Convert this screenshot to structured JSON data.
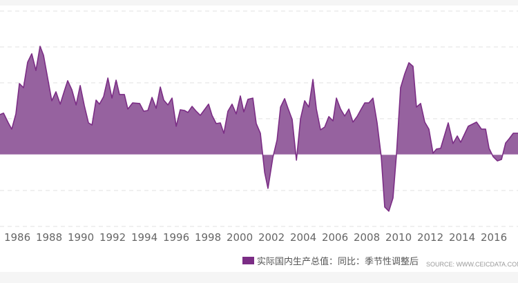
{
  "chart_data": {
    "type": "area",
    "title": "",
    "xlabel": "",
    "ylabel": "",
    "xlim": [
      1984.91,
      2017.52
    ],
    "ylim": [
      -4,
      8
    ],
    "grid": true,
    "y_gridlines": [
      -4,
      -2,
      0,
      2,
      4,
      6,
      8
    ],
    "x_ticks": [
      "1986",
      "1988",
      "1990",
      "1992",
      "1994",
      "1996",
      "1998",
      "2000",
      "2002",
      "2004",
      "2006",
      "2008",
      "2010",
      "2012",
      "2014",
      "2016"
    ],
    "legend": {
      "placement": "bottom",
      "entries": [
        "实际国内生产总值：同比：季节性调整后"
      ]
    },
    "source": "SOURCE: WWW.CEICDATA.COM",
    "colors": {
      "fill": "#96629f",
      "line": "#7b2d85"
    },
    "series": [
      {
        "name": "实际国内生产总值：同比：季节性调整后",
        "points": [
          [
            1984.91,
            2.23
          ],
          [
            1985.13,
            2.31
          ],
          [
            1985.43,
            1.77
          ],
          [
            1985.65,
            1.42
          ],
          [
            1985.91,
            2.27
          ],
          [
            1986.13,
            3.96
          ],
          [
            1986.39,
            3.73
          ],
          [
            1986.65,
            5.15
          ],
          [
            1986.91,
            5.62
          ],
          [
            1987.17,
            4.69
          ],
          [
            1987.43,
            6.04
          ],
          [
            1987.65,
            5.54
          ],
          [
            1988.17,
            3.0
          ],
          [
            1988.43,
            3.5
          ],
          [
            1988.7,
            2.81
          ],
          [
            1988.96,
            3.54
          ],
          [
            1989.17,
            4.12
          ],
          [
            1989.43,
            3.62
          ],
          [
            1989.7,
            2.77
          ],
          [
            1989.96,
            3.85
          ],
          [
            1990.22,
            2.73
          ],
          [
            1990.48,
            1.77
          ],
          [
            1990.7,
            1.65
          ],
          [
            1990.96,
            3.04
          ],
          [
            1991.17,
            2.81
          ],
          [
            1991.43,
            3.23
          ],
          [
            1991.7,
            4.27
          ],
          [
            1991.96,
            3.15
          ],
          [
            1992.22,
            4.15
          ],
          [
            1992.43,
            3.35
          ],
          [
            1992.74,
            3.35
          ],
          [
            1992.96,
            2.54
          ],
          [
            1993.26,
            2.88
          ],
          [
            1993.7,
            2.85
          ],
          [
            1993.96,
            2.42
          ],
          [
            1994.22,
            2.46
          ],
          [
            1994.48,
            3.19
          ],
          [
            1994.74,
            2.58
          ],
          [
            1995.0,
            3.77
          ],
          [
            1995.22,
            3.04
          ],
          [
            1995.48,
            2.77
          ],
          [
            1995.74,
            3.15
          ],
          [
            1996.0,
            1.58
          ],
          [
            1996.26,
            2.5
          ],
          [
            1996.52,
            2.46
          ],
          [
            1996.74,
            2.35
          ],
          [
            1997.0,
            2.69
          ],
          [
            1997.26,
            2.42
          ],
          [
            1997.52,
            2.19
          ],
          [
            1997.78,
            2.5
          ],
          [
            1998.04,
            2.81
          ],
          [
            1998.26,
            2.19
          ],
          [
            1998.52,
            1.73
          ],
          [
            1998.78,
            1.77
          ],
          [
            1999.0,
            1.19
          ],
          [
            1999.26,
            2.42
          ],
          [
            1999.52,
            2.81
          ],
          [
            1999.78,
            2.27
          ],
          [
            2000.04,
            3.27
          ],
          [
            2000.26,
            2.38
          ],
          [
            2000.52,
            3.08
          ],
          [
            2000.83,
            3.15
          ],
          [
            2001.04,
            1.73
          ],
          [
            2001.3,
            1.19
          ],
          [
            2001.57,
            -1.0
          ],
          [
            2001.78,
            -1.88
          ],
          [
            2002.09,
            -0.15
          ],
          [
            2002.35,
            0.81
          ],
          [
            2002.57,
            2.65
          ],
          [
            2002.83,
            3.12
          ],
          [
            2003.04,
            2.58
          ],
          [
            2003.3,
            1.96
          ],
          [
            2003.57,
            -0.31
          ],
          [
            2003.83,
            2.0
          ],
          [
            2004.09,
            3.0
          ],
          [
            2004.35,
            2.65
          ],
          [
            2004.61,
            4.19
          ],
          [
            2004.83,
            2.54
          ],
          [
            2005.09,
            1.38
          ],
          [
            2005.35,
            1.54
          ],
          [
            2005.61,
            2.12
          ],
          [
            2005.87,
            1.88
          ],
          [
            2006.09,
            3.15
          ],
          [
            2006.35,
            2.54
          ],
          [
            2006.61,
            2.15
          ],
          [
            2006.87,
            2.54
          ],
          [
            2007.13,
            1.81
          ],
          [
            2007.39,
            2.12
          ],
          [
            2007.65,
            2.54
          ],
          [
            2007.87,
            2.88
          ],
          [
            2008.13,
            2.88
          ],
          [
            2008.39,
            3.15
          ],
          [
            2008.65,
            1.77
          ],
          [
            2008.91,
            -0.12
          ],
          [
            2009.13,
            -2.92
          ],
          [
            2009.39,
            -3.15
          ],
          [
            2009.65,
            -2.42
          ],
          [
            2009.87,
            0.04
          ],
          [
            2010.13,
            3.73
          ],
          [
            2010.39,
            4.5
          ],
          [
            2010.65,
            5.12
          ],
          [
            2010.91,
            4.92
          ],
          [
            2011.13,
            2.65
          ],
          [
            2011.39,
            2.85
          ],
          [
            2011.65,
            1.81
          ],
          [
            2011.91,
            1.42
          ],
          [
            2012.17,
            0.08
          ],
          [
            2012.39,
            0.31
          ],
          [
            2012.65,
            0.35
          ],
          [
            2013.13,
            1.77
          ],
          [
            2013.43,
            0.62
          ],
          [
            2013.7,
            1.04
          ],
          [
            2013.91,
            0.69
          ],
          [
            2014.39,
            1.58
          ],
          [
            2014.91,
            1.81
          ],
          [
            2015.22,
            1.42
          ],
          [
            2015.48,
            1.42
          ],
          [
            2015.7,
            0.35
          ],
          [
            2015.96,
            -0.12
          ],
          [
            2016.22,
            -0.35
          ],
          [
            2016.48,
            -0.27
          ],
          [
            2016.74,
            0.65
          ],
          [
            2016.96,
            0.88
          ],
          [
            2017.22,
            1.19
          ],
          [
            2017.52,
            1.19
          ]
        ]
      }
    ]
  }
}
